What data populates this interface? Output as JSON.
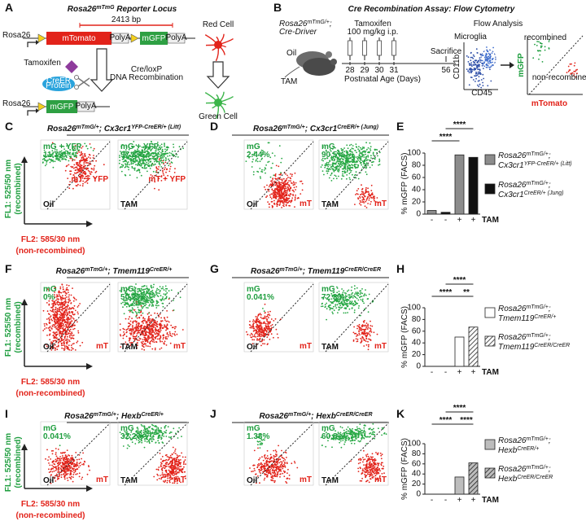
{
  "panel_a": {
    "letter": "A",
    "title": [
      "Rosa26",
      "mTmG",
      " Reporter Locus"
    ],
    "size": "2413 bp",
    "locus_before": "Rosa26",
    "mtomato": "mTomato",
    "polya_1": "PolyA",
    "mgfp_before": "mGFP",
    "polya_2": "PolyA",
    "tamoxifen": "Tamoxifen",
    "creer": [
      "CreER",
      "Protein"
    ],
    "recombination": [
      "Cre/loxP",
      "DNA Recombination"
    ],
    "red_cell": "Red Cell",
    "green_cell": "Green Cell",
    "locus_after": "Rosa26",
    "mgfp_after": "mGFP",
    "polya_3": "PolyA"
  },
  "panel_b": {
    "letter": "B",
    "title": "Cre Recombination Assay: Flow Cytometry",
    "mouse_line1": [
      "Rosa26",
      "mTmG/+",
      ";"
    ],
    "mouse_line2": "Cre-Driver",
    "oil": "Oil",
    "tam": "TAM",
    "tamoxifen": "Tamoxifen",
    "dose": "100 mg/kg i.p.",
    "days": [
      "28",
      "29",
      "30",
      "31"
    ],
    "age_label": "Postnatal Age (Days)",
    "sacrifice": "Sacrifice",
    "sacrifice_day": "56",
    "flow": "Flow Analysis",
    "microglia": "Microglia",
    "cd11b": "CD11b",
    "cd45": "CD45",
    "mgfp": "mGFP",
    "mtomato": "mTomato",
    "recombined": "recombined",
    "non_recombined": "non-recombined"
  },
  "axis_labels": {
    "fl1": "FL1: 525/50 nm",
    "fl1_sub": "(recombined)",
    "fl2": "FL2: 585/30 nm",
    "fl2_sub": "(non-recombined)"
  },
  "flow_panels": [
    {
      "letter": "C",
      "title": [
        "Rosa26",
        "mTmG/+",
        "; Cx3cr1",
        "YFP-CreER/+ (Litt)"
      ],
      "plots": [
        {
          "green_label": "mG + YFP",
          "percent": "11.7%",
          "red_label": "mT + YFP",
          "treatment": "Oil"
        },
        {
          "green_label": "mG + YFP",
          "percent": "97.3%",
          "red_label": "mT + YFP",
          "treatment": "TAM"
        }
      ]
    },
    {
      "letter": "D",
      "title": [
        "Rosa26",
        "mTmG/+",
        "; Cx3cr1",
        "CreER/+ (Jung)"
      ],
      "plots": [
        {
          "green_label": "mG",
          "percent": "2.44%",
          "red_label": "mT",
          "treatment": "Oil"
        },
        {
          "green_label": "mG",
          "percent": "90.5%",
          "red_label": "mT",
          "treatment": "TAM"
        }
      ]
    },
    {
      "letter": "F",
      "title": [
        "Rosa26",
        "mTmG/+",
        "; Tmem119",
        "CreER/+"
      ],
      "plots": [
        {
          "green_label": "mG",
          "percent": "0%",
          "red_label": "mT",
          "treatment": "Oil"
        },
        {
          "green_label": "mG",
          "percent": "50.2%",
          "red_label": "mT",
          "treatment": "TAM"
        }
      ]
    },
    {
      "letter": "G",
      "title": [
        "Rosa26",
        "mTmG/+",
        "; Tmem119",
        "CreER/CreER"
      ],
      "plots": [
        {
          "green_label": "mG",
          "percent": "0.041%",
          "red_label": "mT",
          "treatment": "Oil"
        },
        {
          "green_label": "mG",
          "percent": "72.3%",
          "red_label": "mT",
          "treatment": "TAM"
        }
      ]
    },
    {
      "letter": "I",
      "title": [
        "Rosa26",
        "mTmG/+",
        "; Hexb",
        "CreER/+"
      ],
      "plots": [
        {
          "green_label": "mG",
          "percent": "0.041%",
          "red_label": "mT",
          "treatment": "Oil"
        },
        {
          "green_label": "mG",
          "percent": "32.2%",
          "red_label": "mT",
          "treatment": "TAM"
        }
      ]
    },
    {
      "letter": "J",
      "title": [
        "Rosa26",
        "mTmG/+",
        "; Hexb",
        "CreER/CreER"
      ],
      "plots": [
        {
          "green_label": "mG",
          "percent": "1.38%",
          "red_label": "mT",
          "treatment": "Oil"
        },
        {
          "green_label": "mG",
          "percent": "60.8%",
          "red_label": "mT",
          "treatment": "TAM"
        }
      ]
    }
  ],
  "chart_data": [
    {
      "type": "bar",
      "letter": "E",
      "y_label": "% mGFP (FACS)",
      "ylim": [
        0,
        100
      ],
      "yticks": [
        0,
        20,
        40,
        60,
        80,
        100
      ],
      "x_labels": [
        "-",
        "-",
        "+",
        "+"
      ],
      "x_title": "TAM",
      "significance": [
        "****",
        "****"
      ],
      "series": [
        {
          "name": [
            [
              "Rosa26",
              "mTmG/+",
              ";"
            ],
            [
              "Cx3cr1",
              "YFP-CreER/+ (Litt)"
            ]
          ],
          "color": "#8c8c8c",
          "hatch": false,
          "values": [
            6,
            97
          ]
        },
        {
          "name": [
            [
              "Rosa26",
              "mTmG/+",
              ";"
            ],
            [
              "Cx3cr1",
              "CreER/+ (Jung)"
            ]
          ],
          "color": "#111111",
          "hatch": false,
          "values": [
            3,
            93
          ]
        }
      ]
    },
    {
      "type": "bar",
      "letter": "H",
      "y_label": "% mGFP (FACS)",
      "ylim": [
        0,
        100
      ],
      "yticks": [
        0,
        20,
        40,
        60,
        80,
        100
      ],
      "x_labels": [
        "-",
        "-",
        "+",
        "+"
      ],
      "x_title": "TAM",
      "significance": [
        "****",
        "****",
        "**"
      ],
      "series": [
        {
          "name": [
            [
              "Rosa26",
              "mTmG/+",
              ";"
            ],
            [
              "Tmem119",
              "CreER/+"
            ]
          ],
          "color": "#ffffff",
          "hatch": false,
          "values": [
            0,
            50
          ]
        },
        {
          "name": [
            [
              "Rosa26",
              "mTmG/+",
              ";"
            ],
            [
              "Tmem119",
              "CreER/CreER"
            ]
          ],
          "color": "#ffffff",
          "hatch": true,
          "values": [
            0,
            67
          ]
        }
      ]
    },
    {
      "type": "bar",
      "letter": "K",
      "y_label": "% mGFP (FACS)",
      "ylim": [
        0,
        100
      ],
      "yticks": [
        0,
        20,
        40,
        60,
        80,
        100
      ],
      "x_labels": [
        "-",
        "-",
        "+",
        "+"
      ],
      "x_title": "TAM",
      "significance": [
        "****",
        "****",
        "****"
      ],
      "series": [
        {
          "name": [
            [
              "Rosa26",
              "mTmG/+",
              ";"
            ],
            [
              "Hexb",
              "CreER/+"
            ]
          ],
          "color": "#bdbdbd",
          "hatch": false,
          "values": [
            0,
            34
          ]
        },
        {
          "name": [
            [
              "Rosa26",
              "mTmG/+",
              ";"
            ],
            [
              "Hexb",
              "CreER/CreER"
            ]
          ],
          "color": "#bdbdbd",
          "hatch": true,
          "values": [
            0,
            62
          ]
        }
      ]
    }
  ]
}
